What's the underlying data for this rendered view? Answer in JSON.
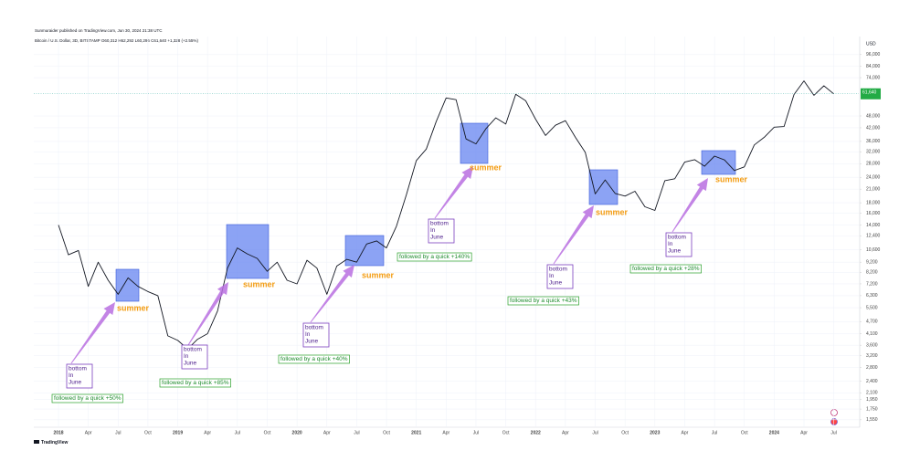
{
  "chart_data": {
    "type": "line",
    "attribution": "Sunmuraider published on TradingView.com, Jun 30, 2024 21:38 UTC",
    "title": "Bitcoin / U.S. Dollar, 3D, BITSTAMP O60,312 H62,292 L60,296 C61,640 +1,328 (+2.55%)",
    "y_label": "USD",
    "footer": "TradingView",
    "log_scale": true,
    "grid": true,
    "color": "#131722",
    "categories": [
      "2018",
      null,
      null,
      "Apr",
      null,
      null,
      "Jul",
      null,
      null,
      "Oct",
      null,
      null,
      "2019",
      null,
      null,
      "Apr",
      null,
      null,
      "Jul",
      null,
      null,
      "Oct",
      null,
      null,
      "2020",
      null,
      null,
      "Apr",
      null,
      null,
      "Jul",
      null,
      null,
      "Oct",
      null,
      null,
      "2021",
      null,
      null,
      "Apr",
      null,
      null,
      "Jul",
      null,
      null,
      "Oct",
      null,
      null,
      "2022",
      null,
      null,
      "Apr",
      null,
      null,
      "Jul",
      null,
      null,
      "Oct",
      null,
      null,
      "2023",
      null,
      null,
      "Apr",
      null,
      null,
      "Jul",
      null,
      null,
      "Oct",
      null,
      null,
      "2024",
      null,
      null,
      "Apr",
      null,
      null,
      "Jul"
    ],
    "values": [
      14000,
      10000,
      10500,
      7000,
      9200,
      7500,
      6400,
      7700,
      7000,
      6600,
      6300,
      4000,
      3800,
      3450,
      3850,
      4100,
      5300,
      8600,
      10800,
      10100,
      9600,
      8300,
      9200,
      7500,
      7200,
      9400,
      8600,
      6400,
      8800,
      9500,
      9200,
      11300,
      11700,
      10800,
      13800,
      19700,
      29000,
      33000,
      45000,
      58800,
      57700,
      37000,
      35000,
      41500,
      47000,
      43800,
      61300,
      57000,
      46300,
      38500,
      43200,
      45500,
      37700,
      31800,
      19900,
      23300,
      20000,
      19400,
      20500,
      17200,
      16500,
      23100,
      23600,
      28500,
      29300,
      27200,
      30500,
      29200,
      25900,
      27000,
      34600,
      37700,
      42300,
      42600,
      61200,
      71300,
      60600,
      67500,
      61640
    ],
    "last_value": 61640,
    "last_value_label": "61,640",
    "ylim": [
      1470,
      113000
    ],
    "yticks": [
      {
        "value": 96000,
        "label": "96,000"
      },
      {
        "value": 84000,
        "label": "84,000"
      },
      {
        "value": 74000,
        "label": "74,000"
      },
      {
        "value": 48000,
        "label": "48,000"
      },
      {
        "value": 42000,
        "label": "42,000"
      },
      {
        "value": 36000,
        "label": "36,000"
      },
      {
        "value": 32000,
        "label": "32,000"
      },
      {
        "value": 28000,
        "label": "28,000"
      },
      {
        "value": 24000,
        "label": "24,000"
      },
      {
        "value": 21000,
        "label": "21,000"
      },
      {
        "value": 18000,
        "label": "18,000"
      },
      {
        "value": 16000,
        "label": "16,000"
      },
      {
        "value": 14000,
        "label": "14,000"
      },
      {
        "value": 12400,
        "label": "12,400"
      },
      {
        "value": 10600,
        "label": "10,600"
      },
      {
        "value": 9200,
        "label": "9,200"
      },
      {
        "value": 8200,
        "label": "8,200"
      },
      {
        "value": 7200,
        "label": "7,200"
      },
      {
        "value": 6300,
        "label": "6,300"
      },
      {
        "value": 5500,
        "label": "5,500"
      },
      {
        "value": 4700,
        "label": "4,700"
      },
      {
        "value": 4100,
        "label": "4,100"
      },
      {
        "value": 3600,
        "label": "3,600"
      },
      {
        "value": 3200,
        "label": "3,200"
      },
      {
        "value": 2800,
        "label": "2,800"
      },
      {
        "value": 2400,
        "label": "2,400"
      },
      {
        "value": 2100,
        "label": "2,100"
      },
      {
        "value": 1950,
        "label": "1,950"
      },
      {
        "value": 1750,
        "label": "1,750"
      },
      {
        "value": 1550,
        "label": "1,550"
      }
    ],
    "annotations": [
      {
        "season": "summer",
        "bottom": [
          "bottom",
          "In",
          "June"
        ],
        "note": "followed by a quick +50%"
      },
      {
        "season": "summer",
        "bottom": [
          "bottom",
          "In",
          "June"
        ],
        "note": "followed by a quick +85%"
      },
      {
        "season": "summer",
        "bottom": [
          "bottom",
          "In",
          "June"
        ],
        "note": "followed by a quick +40%"
      },
      {
        "season": "summer",
        "bottom": [
          "bottom",
          "In",
          "June"
        ],
        "note": "followed by a quick +140%"
      },
      {
        "season": "summer",
        "bottom": [
          "bottom",
          "In",
          "June"
        ],
        "note": "followed by a quick +43%"
      },
      {
        "season": "summer",
        "bottom": [
          "bottom",
          "In",
          "June"
        ],
        "note": "followed by a quick +28%"
      }
    ]
  }
}
